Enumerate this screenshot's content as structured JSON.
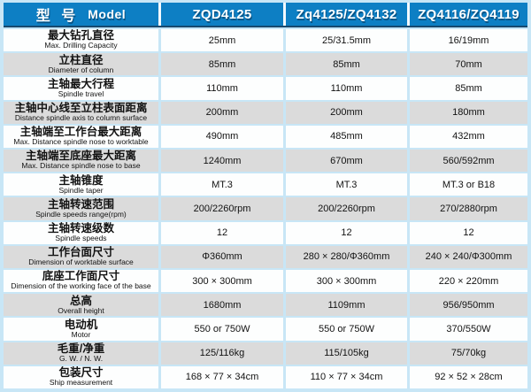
{
  "header": {
    "model_cn": "型 号",
    "model_en": "Model",
    "columns": [
      "ZQD4125",
      "Zq4125/ZQ4132",
      "ZQ4116/ZQ4119"
    ]
  },
  "table": {
    "rows": [
      {
        "cn": "最大钻孔直径",
        "en": "Max. Drilling Capacity",
        "values": [
          "25mm",
          "25/31.5mm",
          "16/19mm"
        ]
      },
      {
        "cn": "立柱直径",
        "en": "Diameter of column",
        "values": [
          "85mm",
          "85mm",
          "70mm"
        ]
      },
      {
        "cn": "主轴最大行程",
        "en": "Spindle travel",
        "values": [
          "110mm",
          "110mm",
          "85mm"
        ]
      },
      {
        "cn": "主轴中心线至立柱表面距离",
        "en": "Distance spindle axis to column surface",
        "values": [
          "200mm",
          "200mm",
          "180mm"
        ]
      },
      {
        "cn": "主轴端至工作台最大距离",
        "en": "Max. Distance spindle nose to worktable",
        "values": [
          "490mm",
          "485mm",
          "432mm"
        ]
      },
      {
        "cn": "主轴端至底座最大距离",
        "en": "Max. Distance spindle nose to base",
        "values": [
          "1240mm",
          "670mm",
          "560/592mm"
        ]
      },
      {
        "cn": "主轴锥度",
        "en": "Spindle taper",
        "values": [
          "MT.3",
          "MT.3",
          "MT.3 or B18"
        ]
      },
      {
        "cn": "主轴转速范围",
        "en": "Spindle speeds range(rpm)",
        "values": [
          "200/2260rpm",
          "200/2260rpm",
          "270/2880rpm"
        ]
      },
      {
        "cn": "主轴转速级数",
        "en": "Spindle speeds",
        "values": [
          "12",
          "12",
          "12"
        ]
      },
      {
        "cn": "工作台面尺寸",
        "en": "Dimension of worktable surface",
        "values": [
          "Φ360mm",
          "280 × 280/Φ360mm",
          "240 × 240/Φ300mm"
        ]
      },
      {
        "cn": "底座工作面尺寸",
        "en": "Dimension of the working face of the base",
        "values": [
          "300 × 300mm",
          "300 × 300mm",
          "220 × 220mm"
        ]
      },
      {
        "cn": "总高",
        "en": "Overall height",
        "values": [
          "1680mm",
          "1109mm",
          "956/950mm"
        ]
      },
      {
        "cn": "电动机",
        "en": "Motor",
        "values": [
          "550 or 750W",
          "550 or 750W",
          "370/550W"
        ]
      },
      {
        "cn": "毛重/净重",
        "en": "G. W. / N. W.",
        "values": [
          "125/116kg",
          "115/105kg",
          "75/70kg"
        ]
      },
      {
        "cn": "包装尺寸",
        "en": "Ship measurement",
        "values": [
          "168 × 77 × 34cm",
          "110 × 77 × 34cm",
          "92 × 52 × 28cm"
        ]
      }
    ]
  },
  "colors": {
    "header_bg": "#0d7fc4",
    "header_dark_line": "#17496e",
    "frame_blue": "#c8e6f6",
    "row_alt": "#dbdbdb",
    "row_white": "#fdfefe",
    "text": "#121212"
  }
}
